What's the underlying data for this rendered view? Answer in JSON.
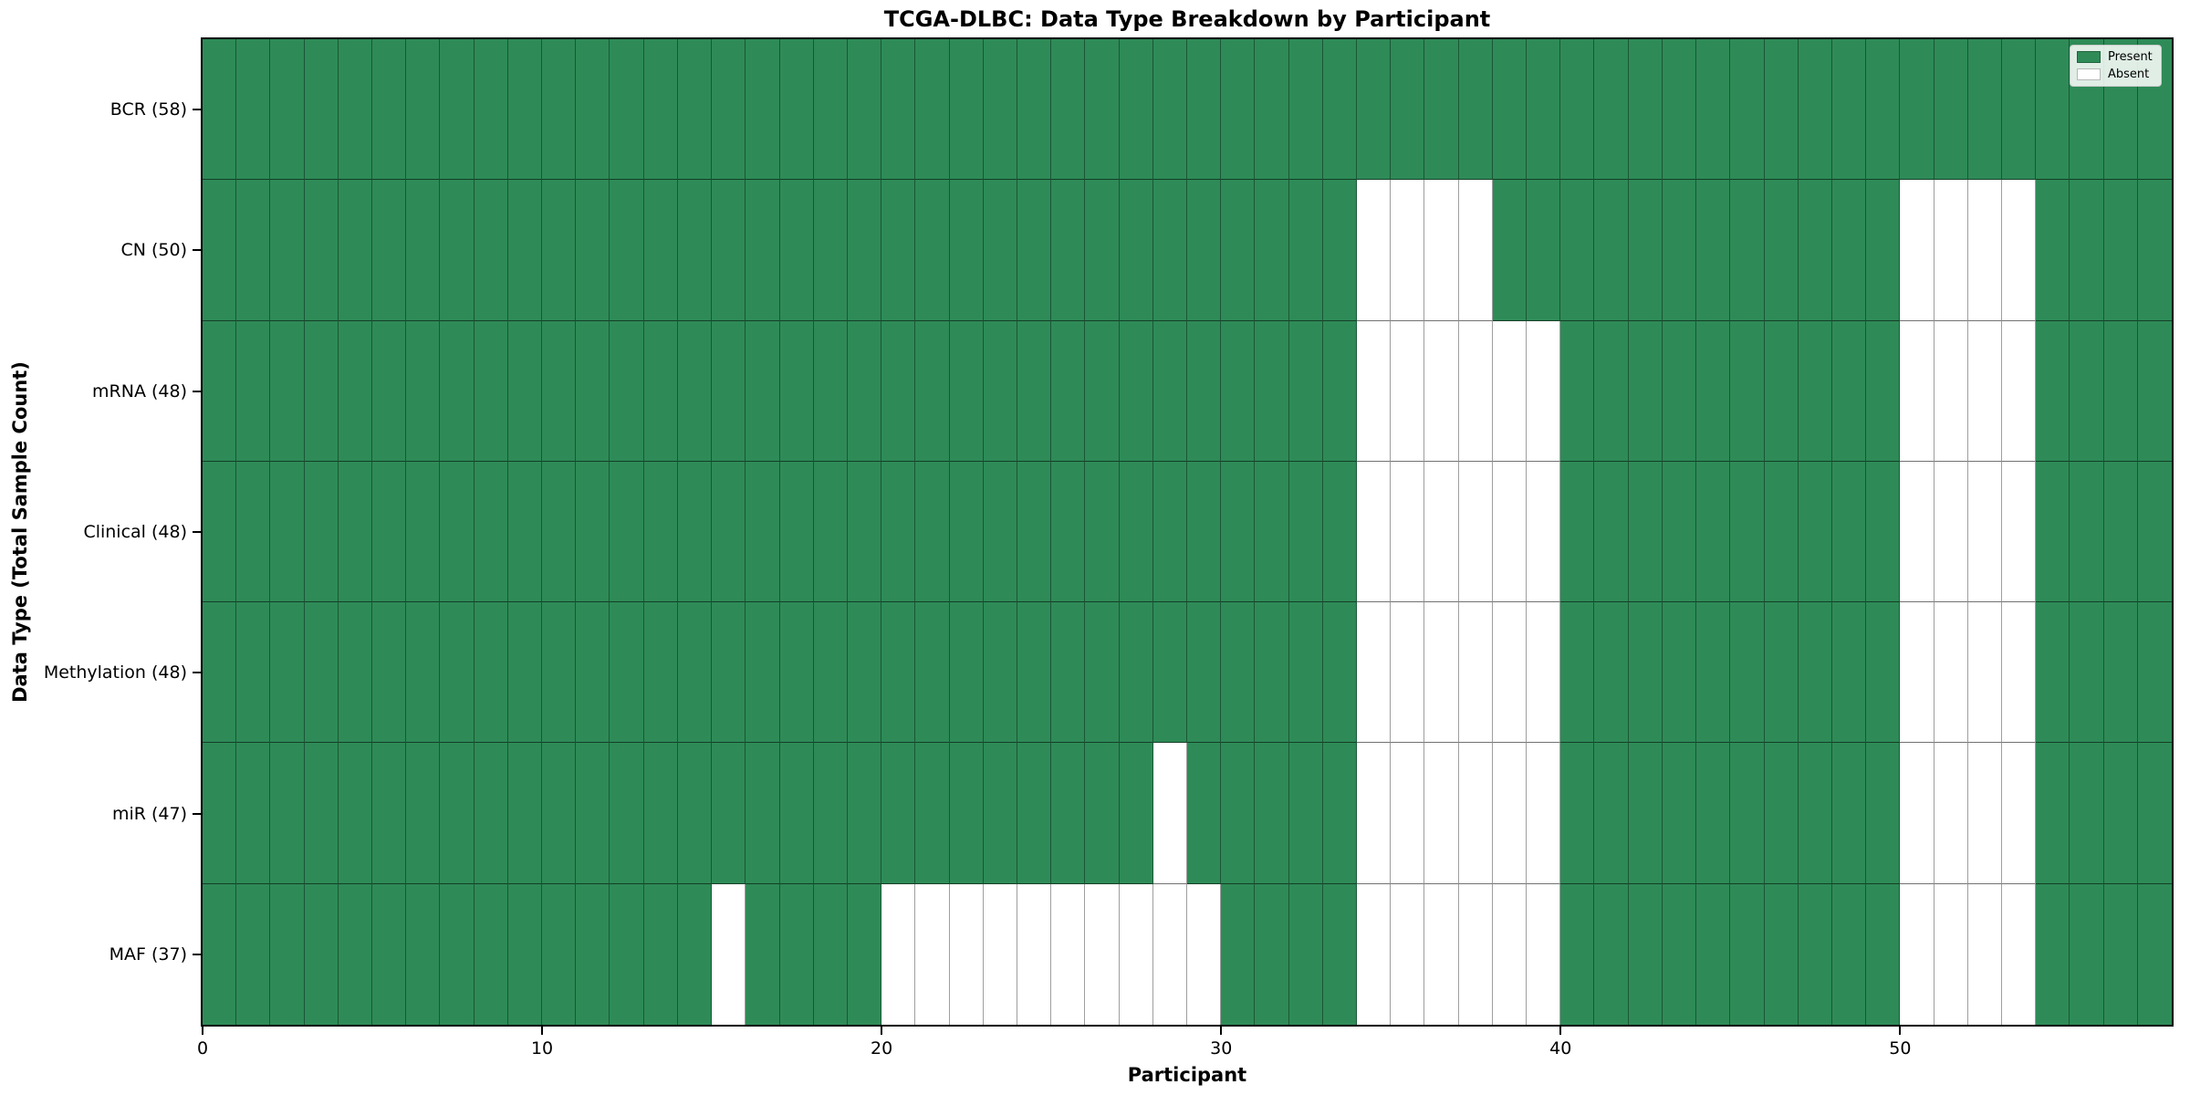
{
  "figure": {
    "title": "TCGA-DLBC: Data Type Breakdown by Participant",
    "xlabel": "Participant",
    "ylabel": "Data Type (Total Sample Count)"
  },
  "chart_data": {
    "type": "heatmap",
    "title": "TCGA-DLBC: Data Type Breakdown by Participant",
    "xlabel": "Participant",
    "ylabel": "Data Type (Total Sample Count)",
    "x_range": [
      0,
      58
    ],
    "n_participants": 58,
    "x_ticks": [
      0,
      10,
      20,
      30,
      40,
      50
    ],
    "grid": true,
    "colors": {
      "present": "#2e8b57",
      "absent": "#ffffff"
    },
    "legend": {
      "position": "upper right",
      "entries": [
        {
          "label": "Present",
          "color": "#2e8b57"
        },
        {
          "label": "Absent",
          "color": "#ffffff"
        }
      ]
    },
    "rows": [
      {
        "label": "BCR (58)",
        "total": 58,
        "absent_participants": []
      },
      {
        "label": "CN (50)",
        "total": 50,
        "absent_participants": [
          34,
          35,
          36,
          37,
          50,
          51,
          52,
          53
        ]
      },
      {
        "label": "mRNA (48)",
        "total": 48,
        "absent_participants": [
          34,
          35,
          36,
          37,
          38,
          39,
          50,
          51,
          52,
          53
        ]
      },
      {
        "label": "Clinical (48)",
        "total": 48,
        "absent_participants": [
          34,
          35,
          36,
          37,
          38,
          39,
          50,
          51,
          52,
          53
        ]
      },
      {
        "label": "Methylation (48)",
        "total": 48,
        "absent_participants": [
          34,
          35,
          36,
          37,
          38,
          39,
          50,
          51,
          52,
          53
        ]
      },
      {
        "label": "miR (47)",
        "total": 47,
        "absent_participants": [
          28,
          34,
          35,
          36,
          37,
          38,
          39,
          50,
          51,
          52,
          53
        ]
      },
      {
        "label": "MAF (37)",
        "total": 37,
        "absent_participants": [
          15,
          20,
          21,
          22,
          23,
          24,
          25,
          26,
          27,
          28,
          29,
          34,
          35,
          36,
          37,
          38,
          39,
          50,
          51,
          52,
          53
        ]
      }
    ]
  }
}
